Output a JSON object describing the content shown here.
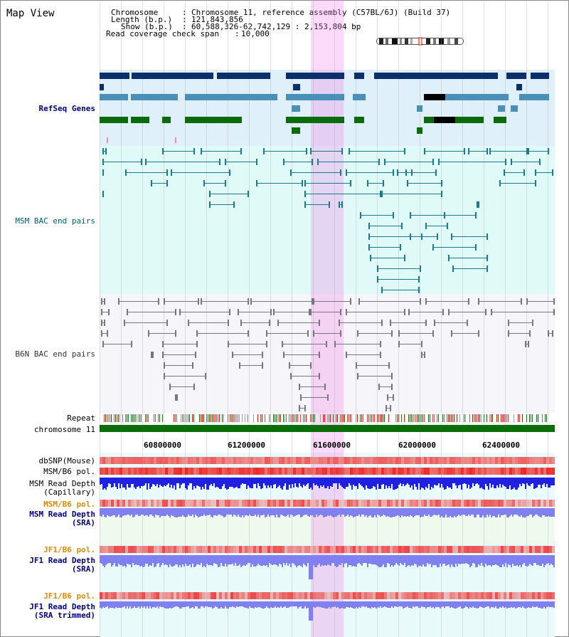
{
  "view_title": "Map View",
  "header": {
    "chromosome_label": "Chromosome",
    "chromosome_value": "Chromosome 11, reference assembly (C57BL/6J) (Build 37)",
    "length_label": "Length (b.p.)",
    "length_value": "121,843,856",
    "show_label": "Show (b.p.)",
    "show_value": "60,588,326-62,742,129 : 2,153,804 bp",
    "coverage_label": "Read coverage check span",
    "coverage_value": "10,000"
  },
  "tracks": {
    "refseq": "RefSeq Genes",
    "msm_bac": "MSM BAC end pairs",
    "b6n_bac": "B6N BAC end pairs",
    "repeat": "Repeat",
    "chromosome": "chromosome 11",
    "dbsnp": "dbSNP(Mouse)",
    "msm_b6_pol": "MSM/B6 pol.",
    "msm_depth_cap_1": "MSM Read Depth",
    "msm_depth_cap_2": "(Capillary)",
    "msm_b6_pol2": "MSM/B6 pol.",
    "msm_depth_sra_1": "MSM Read Depth",
    "msm_depth_sra_2": "(SRA)",
    "jf1_pol": "JF1/B6 pol.",
    "jf1_depth_sra_1": "JF1 Read Depth",
    "jf1_depth_sra_2": "(SRA)",
    "jf1_pol2": "JF1/B6 pol.",
    "jf1_depth_trim_1": "JF1 Read Depth",
    "jf1_depth_trim_2": "(SRA trimmed)"
  },
  "axis": {
    "ticks": [
      "60800000",
      "61200000",
      "61600000",
      "62000000",
      "62400000"
    ]
  },
  "colors": {
    "refseq_bg": "#dff0fa",
    "msm_bg": "#e0faf8",
    "b6n_bg": "#f5f5fa",
    "gene_dark": "#0b2f6b",
    "gene_mid": "#4a8fb8",
    "gene_green": "#0a6b0a",
    "msm_line": "#1a7a8a",
    "b6n_line": "#777777",
    "chromosome_bar": "#0b6e0b",
    "highlight": "#f5b0f0",
    "depth_blue": "#2020e0",
    "depth_light": "#8080f0",
    "label_blue": "#000080",
    "label_orange": "#e08a00"
  }
}
